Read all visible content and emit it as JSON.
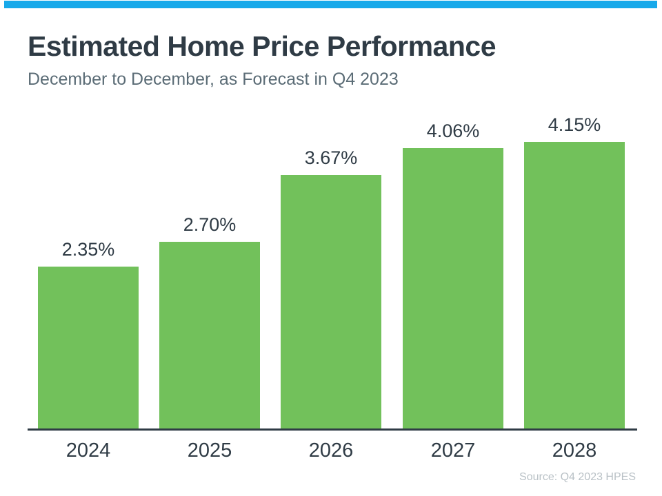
{
  "page": {
    "title": "Estimated Home Price Performance",
    "subtitle": "December to December, as Forecast in Q4 2023",
    "source": "Source: Q4 2023 HPES",
    "colors": {
      "top_accent": "#17a9ea",
      "title": "#2f3b45",
      "subtitle": "#5b6c76",
      "source": "#b9c1c6",
      "axis": "#2f3b45"
    }
  },
  "chart_data": {
    "type": "bar",
    "title": "Estimated Home Price Performance",
    "subtitle": "December to December, as Forecast in Q4 2023",
    "categories": [
      "2024",
      "2025",
      "2026",
      "2027",
      "2028"
    ],
    "values": [
      2.35,
      2.7,
      3.67,
      4.06,
      4.15
    ],
    "labels": [
      "2.35%",
      "2.70%",
      "3.67%",
      "4.06%",
      "4.15%"
    ],
    "unit": "percent",
    "ylim": [
      0,
      4.75
    ],
    "grid": false,
    "legend": false,
    "bar_color": "#72c15b",
    "value_label_color": "#2f3b45",
    "tick_label_color": "#2f3b45",
    "source": "Source: Q4 2023 HPES"
  }
}
